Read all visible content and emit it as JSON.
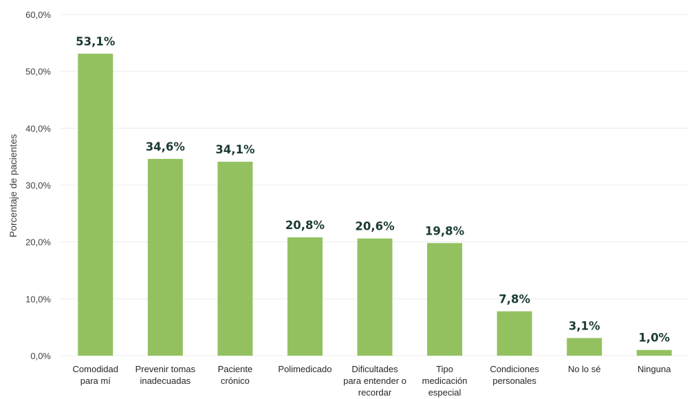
{
  "chart_data": {
    "type": "bar",
    "ylabel": "Porcentaje de pacientes",
    "ylim": [
      0,
      60
    ],
    "yticks": [
      "0,0%",
      "10,0%",
      "20,0%",
      "30,0%",
      "40,0%",
      "50,0%",
      "60,0%"
    ],
    "grid": true,
    "bar_color": "#93c160",
    "label_color": "#1c3b35",
    "categories": [
      [
        "Comodidad",
        "para mí"
      ],
      [
        "Prevenir tomas",
        "inadecuadas"
      ],
      [
        "Paciente",
        "crónico"
      ],
      [
        "Polimedicado"
      ],
      [
        "Dificultades",
        "para entender o",
        "recordar"
      ],
      [
        "Tipo",
        "medicación",
        "especial"
      ],
      [
        "Condiciones",
        "personales"
      ],
      [
        "No lo sé"
      ],
      [
        "Ninguna"
      ]
    ],
    "values": [
      53.1,
      34.6,
      34.1,
      20.8,
      20.6,
      19.8,
      7.8,
      3.1,
      1.0
    ],
    "value_labels": [
      "53,1%",
      "34,6%",
      "34,1%",
      "20,8%",
      "20,6%",
      "19,8%",
      "7,8%",
      "3,1%",
      "1,0%"
    ]
  }
}
